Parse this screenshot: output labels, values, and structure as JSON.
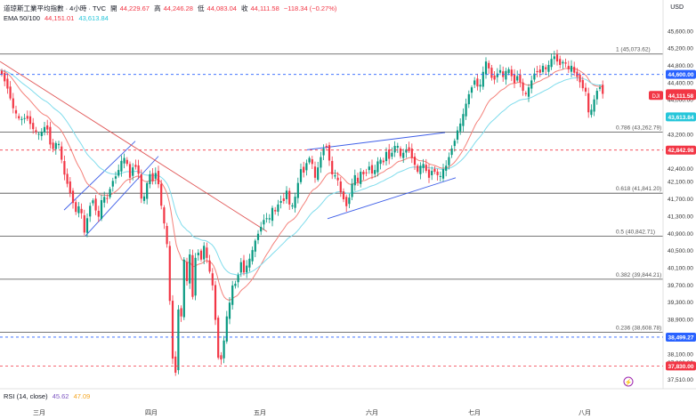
{
  "header": {
    "symbol": "道琼斯工業平均指數 · 4小時 · TVC",
    "o_label": "開",
    "o_val": "44,229.67",
    "h_label": "高",
    "h_val": "44,246.28",
    "l_label": "低",
    "l_val": "44,083.04",
    "c_label": "收",
    "c_val": "44,111.58",
    "change": "−118.34 (−0.27%)",
    "ema_label": "EMA 50/100",
    "ema50_val": "44,151.01",
    "ema100_val": "43,613.84"
  },
  "currency": "USD",
  "rsi": {
    "label": "RSI (14, close)",
    "v1": "45.62",
    "v2": "47.09"
  },
  "colors": {
    "up": "#089981",
    "down": "#f23645",
    "ema50": "#f4817a",
    "ema100": "#7fdcec",
    "trend": "#3f5fe8",
    "grid": "#d4d4d4"
  },
  "chart_data": {
    "type": "candlestick",
    "ylim": [
      37300,
      45750
    ],
    "y_ticks": [
      45600,
      45200,
      44800,
      44400,
      44000,
      43600,
      43200,
      42800,
      42400,
      42100,
      41700,
      41300,
      40900,
      40500,
      40100,
      39700,
      39300,
      38900,
      38500,
      38100,
      37900,
      37510
    ],
    "x_labels": [
      "三月",
      "四月",
      "五月",
      "六月",
      "七月",
      "八月"
    ],
    "fib_levels": [
      {
        "label": "1 (45,073.62)",
        "value": 45073.62
      },
      {
        "label": "0.786 (43,262.79)",
        "value": 43262.79
      },
      {
        "label": "0.618 (41,841.20)",
        "value": 41841.2
      },
      {
        "label": "0.5 (40,842.71)",
        "value": 40842.71
      },
      {
        "label": "0.382 (39,844.21)",
        "value": 39844.21
      },
      {
        "label": "0.236 (38,608.78)",
        "value": 38608.78
      }
    ],
    "price_tags": [
      {
        "text": "44,600.00",
        "value": 44600,
        "color": "#2962ff",
        "line": "dash"
      },
      {
        "text": "44,151.01",
        "value": 44151.01,
        "color": "#f23645"
      },
      {
        "text": "44,111.58",
        "value": 44111.58,
        "color": "#f23645",
        "prefix": "DJI"
      },
      {
        "text": "43,613.84",
        "value": 43613.84,
        "color": "#26c6da"
      },
      {
        "text": "42,842.98",
        "value": 42842.98,
        "color": "#f23645",
        "line": "dash"
      },
      {
        "text": "38,499.27",
        "value": 38499.27,
        "color": "#2962ff",
        "line": "dash"
      },
      {
        "text": "37,830.00",
        "value": 37830,
        "color": "#f23645",
        "line": "dash"
      }
    ],
    "close_path": [
      [
        0,
        44700
      ],
      [
        8,
        44300
      ],
      [
        15,
        43800
      ],
      [
        22,
        43550
      ],
      [
        30,
        43600
      ],
      [
        38,
        43300
      ],
      [
        45,
        43200
      ],
      [
        52,
        43450
      ],
      [
        58,
        42800
      ],
      [
        65,
        43100
      ],
      [
        72,
        42300
      ],
      [
        78,
        41900
      ],
      [
        85,
        41400
      ],
      [
        90,
        41600
      ],
      [
        95,
        40900
      ],
      [
        100,
        41500
      ],
      [
        105,
        41700
      ],
      [
        110,
        41200
      ],
      [
        115,
        41800
      ],
      [
        120,
        41700
      ],
      [
        126,
        42100
      ],
      [
        132,
        42300
      ],
      [
        138,
        42700
      ],
      [
        142,
        42600
      ],
      [
        146,
        42200
      ],
      [
        150,
        42500
      ],
      [
        155,
        42400
      ],
      [
        160,
        41500
      ],
      [
        163,
        41900
      ],
      [
        168,
        42300
      ],
      [
        172,
        42100
      ],
      [
        176,
        42400
      ],
      [
        180,
        41700
      ],
      [
        184,
        41200
      ],
      [
        188,
        40600
      ],
      [
        192,
        38800
      ],
      [
        195,
        37600
      ],
      [
        198,
        37700
      ],
      [
        201,
        39500
      ],
      [
        204,
        38900
      ],
      [
        207,
        40400
      ],
      [
        210,
        39800
      ],
      [
        213,
        40500
      ],
      [
        216,
        39300
      ],
      [
        219,
        40300
      ],
      [
        222,
        40500
      ],
      [
        226,
        40300
      ],
      [
        230,
        40700
      ],
      [
        234,
        40100
      ],
      [
        238,
        39900
      ],
      [
        242,
        38900
      ],
      [
        246,
        37800
      ],
      [
        250,
        38100
      ],
      [
        254,
        38900
      ],
      [
        258,
        39300
      ],
      [
        262,
        39800
      ],
      [
        266,
        39700
      ],
      [
        270,
        40300
      ],
      [
        274,
        40000
      ],
      [
        278,
        40200
      ],
      [
        282,
        40400
      ],
      [
        286,
        40700
      ],
      [
        290,
        40900
      ],
      [
        294,
        41100
      ],
      [
        298,
        41300
      ],
      [
        302,
        41200
      ],
      [
        306,
        41500
      ],
      [
        310,
        41400
      ],
      [
        314,
        41700
      ],
      [
        318,
        41600
      ],
      [
        322,
        41900
      ],
      [
        326,
        41500
      ],
      [
        330,
        41600
      ],
      [
        334,
        42000
      ],
      [
        338,
        42400
      ],
      [
        342,
        42300
      ],
      [
        346,
        42700
      ],
      [
        350,
        42600
      ],
      [
        354,
        42200
      ],
      [
        358,
        42500
      ],
      [
        362,
        42800
      ],
      [
        366,
        43000
      ],
      [
        370,
        42600
      ],
      [
        374,
        42200
      ],
      [
        378,
        42300
      ],
      [
        382,
        41900
      ],
      [
        386,
        41700
      ],
      [
        390,
        41500
      ],
      [
        394,
        41900
      ],
      [
        398,
        42300
      ],
      [
        402,
        42100
      ],
      [
        406,
        42400
      ],
      [
        410,
        42200
      ],
      [
        414,
        42500
      ],
      [
        418,
        42300
      ],
      [
        422,
        42400
      ],
      [
        426,
        42700
      ],
      [
        430,
        42500
      ],
      [
        434,
        42800
      ],
      [
        438,
        42600
      ],
      [
        442,
        42900
      ],
      [
        446,
        43000
      ],
      [
        450,
        42700
      ],
      [
        454,
        42800
      ],
      [
        458,
        42900
      ],
      [
        462,
        42700
      ],
      [
        466,
        42500
      ],
      [
        470,
        42300
      ],
      [
        474,
        42600
      ],
      [
        478,
        42400
      ],
      [
        482,
        42200
      ],
      [
        486,
        42400
      ],
      [
        490,
        42300
      ],
      [
        494,
        42200
      ],
      [
        498,
        42400
      ],
      [
        502,
        42500
      ],
      [
        506,
        42800
      ],
      [
        510,
        43000
      ],
      [
        514,
        43300
      ],
      [
        518,
        43500
      ],
      [
        522,
        43800
      ],
      [
        526,
        44100
      ],
      [
        530,
        44300
      ],
      [
        534,
        44500
      ],
      [
        538,
        44200
      ],
      [
        542,
        44600
      ],
      [
        546,
        44900
      ],
      [
        550,
        44700
      ],
      [
        554,
        44400
      ],
      [
        558,
        44600
      ],
      [
        562,
        44700
      ],
      [
        566,
        44500
      ],
      [
        570,
        44800
      ],
      [
        574,
        44600
      ],
      [
        578,
        44400
      ],
      [
        582,
        44600
      ],
      [
        586,
        44300
      ],
      [
        590,
        44100
      ],
      [
        594,
        44300
      ],
      [
        598,
        44500
      ],
      [
        602,
        44700
      ],
      [
        606,
        44600
      ],
      [
        610,
        44800
      ],
      [
        614,
        44700
      ],
      [
        618,
        44900
      ],
      [
        622,
        45050
      ],
      [
        626,
        44900
      ],
      [
        630,
        44800
      ],
      [
        634,
        44950
      ],
      [
        638,
        44700
      ],
      [
        642,
        44800
      ],
      [
        646,
        44600
      ],
      [
        650,
        44500
      ],
      [
        654,
        44300
      ],
      [
        658,
        44200
      ],
      [
        662,
        43600
      ],
      [
        666,
        43900
      ],
      [
        670,
        44200
      ],
      [
        674,
        44300
      ],
      [
        678,
        44111
      ]
    ]
  }
}
